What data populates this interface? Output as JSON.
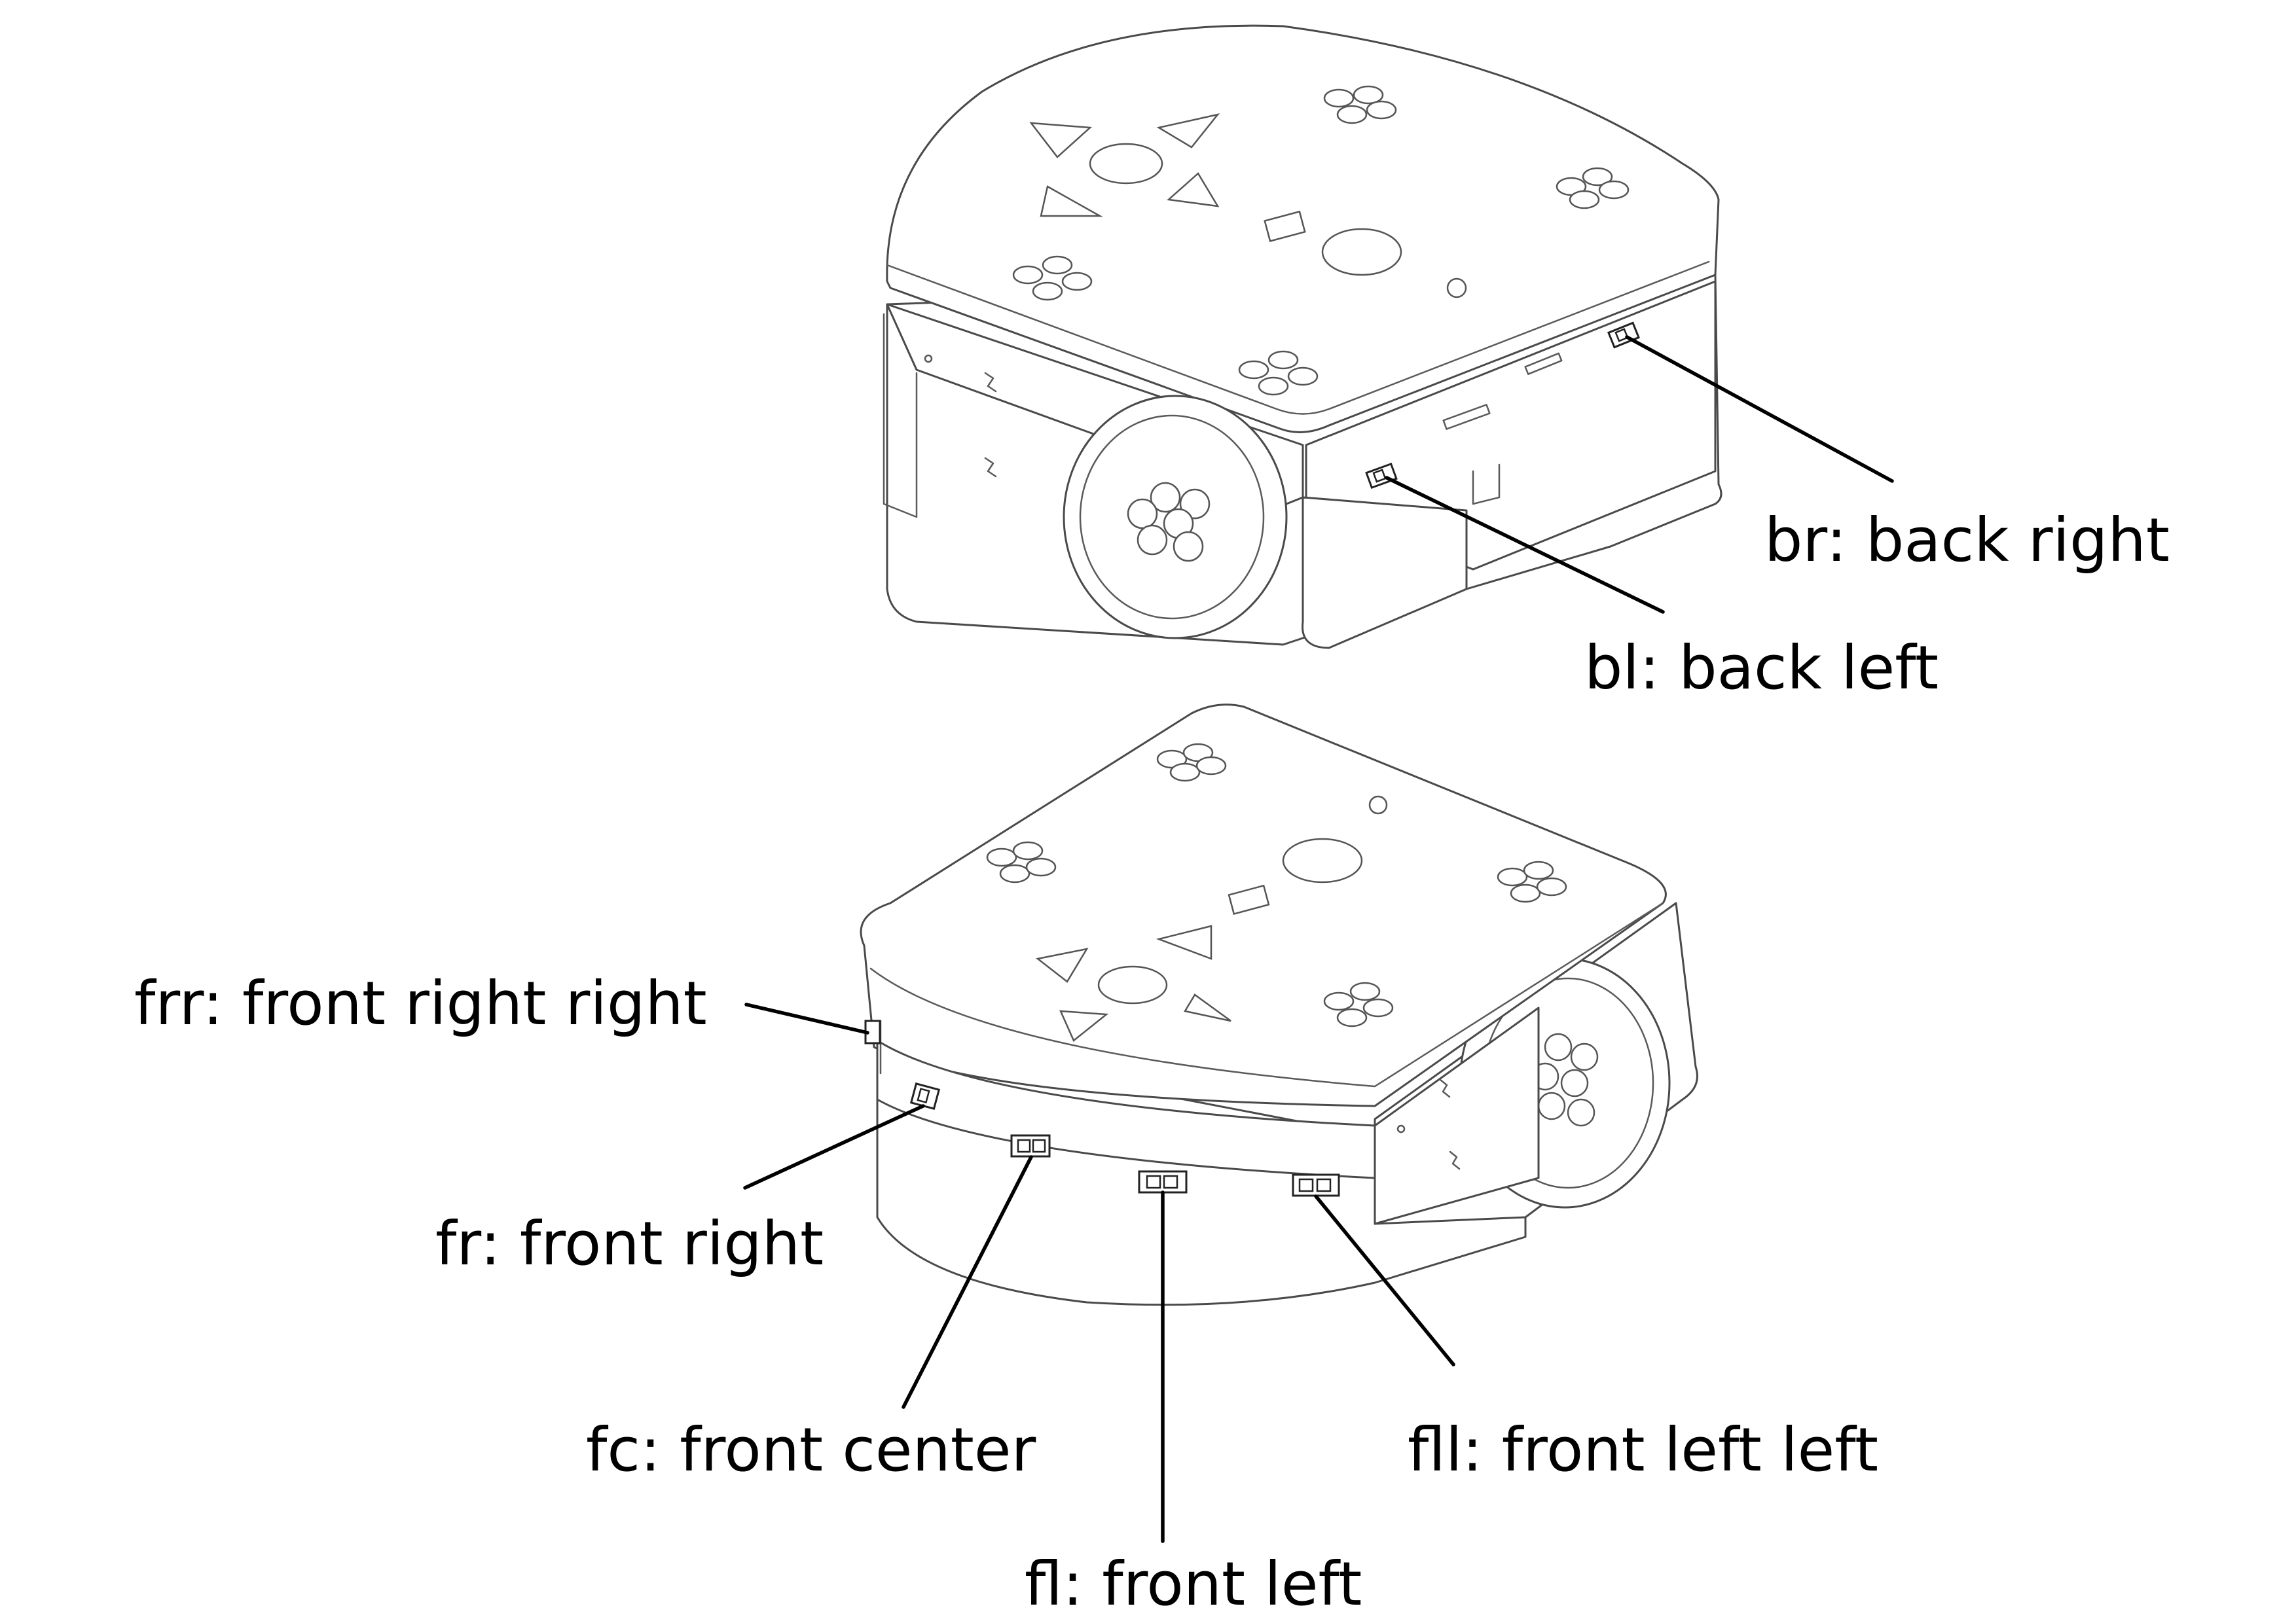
{
  "labels": {
    "br": "br: back right",
    "bl": "bl: back left",
    "frr": "frr: front right right",
    "fr": "fr: front right",
    "fc": "fc: front center",
    "fll": "fll: front left left",
    "fl": "fl: front left"
  },
  "colors": {
    "line": "#000000",
    "outline": "#4a4a4a",
    "background": "#ffffff"
  }
}
